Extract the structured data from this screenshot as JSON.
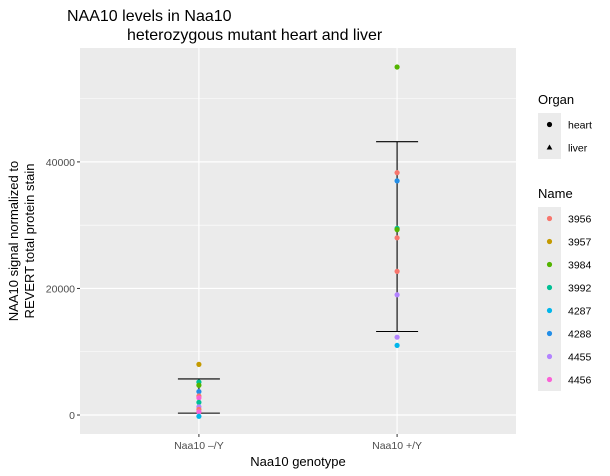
{
  "chart_data": {
    "type": "scatter",
    "title": [
      "NAA10 levels in Naa10",
      "heterozygous mutant heart and liver"
    ],
    "xlabel": "Naa10 genotype",
    "ylabel": [
      "NAA10 signal normalized to",
      "REVERT total protein stain"
    ],
    "categories": [
      "Naa10 –/Y",
      "Naa10 +/Y"
    ],
    "ylim": [
      -3000,
      58000
    ],
    "yticks": [
      0,
      20000,
      40000
    ],
    "grid": true,
    "background": "#ebebeb",
    "legend_position": "right",
    "shape_legend": {
      "title": "Organ",
      "items": [
        {
          "label": "heart",
          "shape": "circle"
        },
        {
          "label": "liver",
          "shape": "triangle"
        }
      ]
    },
    "color_legend": {
      "title": "Name",
      "items": [
        {
          "label": "3956",
          "color": "#f8766d"
        },
        {
          "label": "3957",
          "color": "#c49a00"
        },
        {
          "label": "3984",
          "color": "#53b400"
        },
        {
          "label": "3992",
          "color": "#00c094"
        },
        {
          "label": "4287",
          "color": "#00b6eb"
        },
        {
          "label": "4288",
          "color": "#228ee8"
        },
        {
          "label": "4455",
          "color": "#b383ff"
        },
        {
          "label": "4456",
          "color": "#fb61d7"
        }
      ]
    },
    "error_bars": [
      {
        "category": "Naa10 –/Y",
        "low": 300,
        "high": 5700
      },
      {
        "category": "Naa10 +/Y",
        "low": 13200,
        "high": 43200
      }
    ],
    "points": [
      {
        "category": "Naa10 –/Y",
        "name": "3957",
        "organ": "heart",
        "y": 8000
      },
      {
        "category": "Naa10 –/Y",
        "name": "3992",
        "organ": "heart",
        "y": 5200
      },
      {
        "category": "Naa10 –/Y",
        "name": "3984",
        "organ": "liver",
        "y": 4700
      },
      {
        "category": "Naa10 –/Y",
        "name": "4288",
        "organ": "heart",
        "y": 3700
      },
      {
        "category": "Naa10 –/Y",
        "name": "3956",
        "organ": "heart",
        "y": 3000
      },
      {
        "category": "Naa10 –/Y",
        "name": "4456",
        "organ": "heart",
        "y": 2700
      },
      {
        "category": "Naa10 –/Y",
        "name": "3992",
        "organ": "liver",
        "y": 2000
      },
      {
        "category": "Naa10 –/Y",
        "name": "4455",
        "organ": "heart",
        "y": 1300
      },
      {
        "category": "Naa10 –/Y",
        "name": "3956",
        "organ": "liver",
        "y": 900
      },
      {
        "category": "Naa10 –/Y",
        "name": "4456",
        "organ": "liver",
        "y": 500
      },
      {
        "category": "Naa10 –/Y",
        "name": "4287",
        "organ": "liver",
        "y": -200
      },
      {
        "category": "Naa10 +/Y",
        "name": "3984",
        "organ": "heart",
        "y": 55000
      },
      {
        "category": "Naa10 +/Y",
        "name": "3956",
        "organ": "heart",
        "y": 38300
      },
      {
        "category": "Naa10 +/Y",
        "name": "4288",
        "organ": "heart",
        "y": 37000
      },
      {
        "category": "Naa10 +/Y",
        "name": "3992",
        "organ": "heart",
        "y": 29500
      },
      {
        "category": "Naa10 +/Y",
        "name": "3984",
        "organ": "liver",
        "y": 29300
      },
      {
        "category": "Naa10 +/Y",
        "name": "3956",
        "organ": "liver",
        "y": 28000
      },
      {
        "category": "Naa10 +/Y",
        "name": "3956",
        "organ": "liver",
        "y": 22700
      },
      {
        "category": "Naa10 +/Y",
        "name": "4455",
        "organ": "heart",
        "y": 19000
      },
      {
        "category": "Naa10 +/Y",
        "name": "4455",
        "organ": "liver",
        "y": 12300
      },
      {
        "category": "Naa10 +/Y",
        "name": "4287",
        "organ": "liver",
        "y": 11000
      }
    ]
  }
}
